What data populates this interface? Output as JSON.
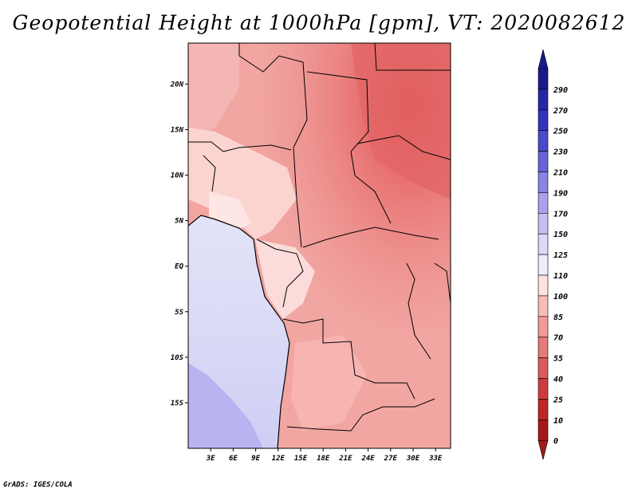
{
  "title": "Geopotential Height at 1000hPa [gpm], VT: 2020082612",
  "credit": "GrADS: IGES/COLA",
  "map": {
    "lat_labels": [
      "20N",
      "15N",
      "10N",
      "5N",
      "EQ",
      "5S",
      "10S",
      "15S"
    ],
    "lon_labels": [
      "3E",
      "6E",
      "9E",
      "12E",
      "15E",
      "18E",
      "21E",
      "24E",
      "27E",
      "30E",
      "33E"
    ],
    "lat_range": [
      -20,
      24.5
    ],
    "lon_range": [
      0,
      35
    ],
    "lat_ticks": [
      20,
      15,
      10,
      5,
      0,
      -5,
      -10,
      -15
    ],
    "lon_ticks": [
      3,
      6,
      9,
      12,
      15,
      18,
      21,
      24,
      27,
      30,
      33
    ]
  },
  "colorbar": {
    "levels": [
      "290",
      "270",
      "250",
      "230",
      "210",
      "190",
      "170",
      "150",
      "125",
      "110",
      "100",
      "85",
      "70",
      "55",
      "40",
      "25",
      "10",
      "0"
    ],
    "colors": [
      "#1a1a8c",
      "#2525a8",
      "#3333bb",
      "#4a4acc",
      "#6a62d8",
      "#8a82e4",
      "#a8a2ee",
      "#c4c0f4",
      "#dadaf8",
      "#eeeef8",
      "#fde2e0",
      "#f8bcb8",
      "#f19a96",
      "#e67b78",
      "#dc5a5a",
      "#cf3b3b",
      "#bf2626",
      "#a51818"
    ],
    "top_color": "#1a1a8c",
    "bottom_color": "#a51818"
  }
}
